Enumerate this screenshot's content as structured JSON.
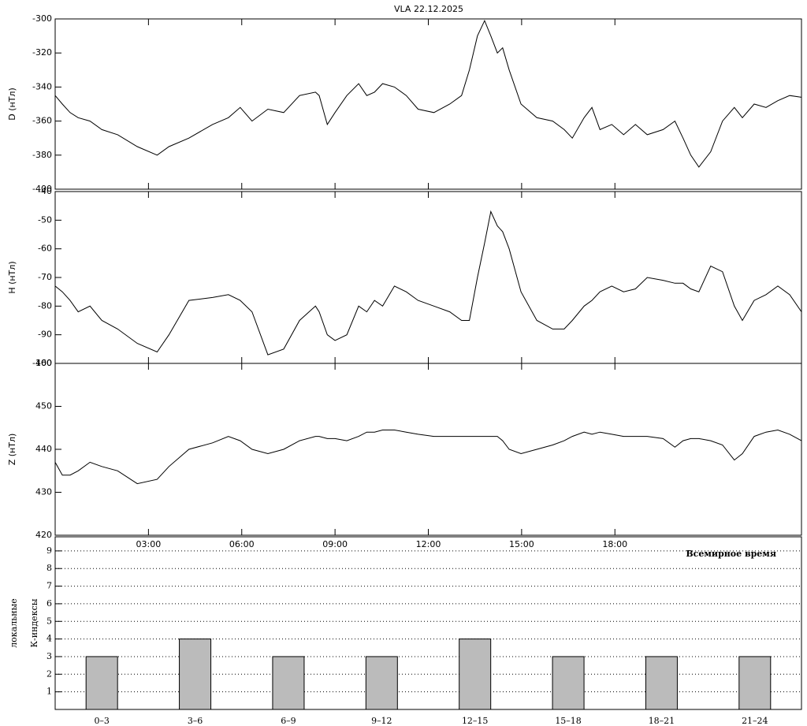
{
  "title": "VLA   22.12.2025",
  "chart_data": [
    {
      "type": "line",
      "ylabel": "D (нТл)",
      "x": [
        0,
        0.23,
        0.48,
        0.74,
        1.12,
        1.5,
        2.01,
        2.64,
        3.28,
        3.66,
        4.3,
        5.06,
        5.57,
        5.95,
        6.33,
        6.84,
        7.35,
        7.86,
        8.37,
        8.49,
        8.75,
        9.0,
        9.38,
        9.76,
        10.02,
        10.27,
        10.53,
        10.91,
        11.29,
        11.67,
        12.18,
        12.69,
        13.07,
        13.32,
        13.58,
        13.81,
        14.01,
        14.22,
        14.39,
        14.6,
        14.98,
        15.49,
        16.0,
        16.37,
        16.63,
        17.01,
        17.26,
        17.52,
        17.9,
        18.28,
        18.66,
        19.04,
        19.55,
        19.93,
        20.19,
        20.44,
        20.7,
        21.08,
        21.46,
        21.84,
        22.1,
        22.48,
        22.86,
        23.24,
        23.62,
        24
      ],
      "values": [
        -345,
        -350,
        -355,
        -358,
        -360,
        -365,
        -368,
        -375,
        -380,
        -375,
        -370,
        -362,
        -358,
        -352,
        -360,
        -353,
        -355,
        -345,
        -343,
        -345,
        -362,
        -355,
        -345,
        -338,
        -345,
        -343,
        -338,
        -340,
        -345,
        -353,
        -355,
        -350,
        -345,
        -330,
        -310,
        -301,
        -310,
        -320,
        -317,
        -330,
        -350,
        -358,
        -360,
        -365,
        -370,
        -358,
        -352,
        -365,
        -362,
        -368,
        -362,
        -368,
        -365,
        -360,
        -370,
        -380,
        -387,
        -378,
        -360,
        -352,
        -358,
        -350,
        -352,
        -348,
        -345,
        -346
      ],
      "color": "#000000",
      "xlim": [
        0,
        24
      ],
      "ylim": [
        -400,
        -300
      ],
      "yticks": [
        -300,
        -320,
        -340,
        -360,
        -380,
        -400
      ]
    },
    {
      "type": "line",
      "ylabel": "H (нТл)",
      "x": [
        0,
        0.23,
        0.48,
        0.74,
        1.12,
        1.5,
        2.01,
        2.64,
        3.28,
        3.66,
        4.3,
        5.06,
        5.57,
        5.95,
        6.33,
        6.84,
        7.35,
        7.86,
        8.37,
        8.49,
        8.75,
        9.0,
        9.38,
        9.76,
        10.02,
        10.27,
        10.53,
        10.91,
        11.29,
        11.67,
        12.18,
        12.69,
        13.07,
        13.32,
        13.58,
        13.81,
        14.01,
        14.22,
        14.39,
        14.6,
        14.98,
        15.49,
        16.0,
        16.37,
        16.63,
        17.01,
        17.26,
        17.52,
        17.9,
        18.28,
        18.66,
        19.04,
        19.55,
        19.93,
        20.19,
        20.44,
        20.7,
        21.08,
        21.46,
        21.84,
        22.1,
        22.48,
        22.86,
        23.24,
        23.62,
        24
      ],
      "values": [
        -73,
        -75,
        -78,
        -82,
        -80,
        -85,
        -88,
        -93,
        -96,
        -90,
        -78,
        -77,
        -76,
        -78,
        -82,
        -97,
        -95,
        -85,
        -80,
        -82,
        -90,
        -92,
        -90,
        -80,
        -82,
        -78,
        -80,
        -73,
        -75,
        -78,
        -80,
        -82,
        -85,
        -85,
        -70,
        -58,
        -47,
        -52,
        -54,
        -60,
        -75,
        -85,
        -88,
        -88,
        -85,
        -80,
        -78,
        -75,
        -73,
        -75,
        -74,
        -70,
        -71,
        -72,
        -72,
        -74,
        -75,
        -66,
        -68,
        -80,
        -85,
        -78,
        -76,
        -73,
        -76,
        -82
      ],
      "color": "#000000",
      "xlim": [
        0,
        24
      ],
      "ylim": [
        -100,
        -40
      ],
      "yticks": [
        -40,
        -50,
        -60,
        -70,
        -80,
        -90,
        -100
      ]
    },
    {
      "type": "line",
      "ylabel": "Z (нТл)",
      "x": [
        0,
        0.23,
        0.48,
        0.74,
        1.12,
        1.5,
        2.01,
        2.64,
        3.28,
        3.66,
        4.3,
        5.06,
        5.57,
        5.95,
        6.33,
        6.84,
        7.35,
        7.86,
        8.37,
        8.49,
        8.75,
        9.0,
        9.38,
        9.76,
        10.02,
        10.27,
        10.53,
        10.91,
        11.29,
        11.67,
        12.18,
        12.69,
        13.07,
        13.32,
        13.58,
        13.81,
        14.01,
        14.22,
        14.39,
        14.6,
        14.98,
        15.49,
        16.0,
        16.37,
        16.63,
        17.01,
        17.26,
        17.52,
        17.9,
        18.28,
        18.66,
        19.04,
        19.55,
        19.93,
        20.19,
        20.44,
        20.7,
        21.08,
        21.46,
        21.84,
        22.1,
        22.48,
        22.86,
        23.24,
        23.62,
        24
      ],
      "values": [
        437,
        434,
        434,
        435,
        437,
        436,
        435,
        432,
        433,
        436,
        440,
        441.5,
        443,
        442,
        440,
        439,
        440,
        442,
        443,
        443,
        442.5,
        442.5,
        442,
        443,
        444,
        444,
        444.5,
        444.5,
        444,
        443.5,
        443,
        443,
        443,
        443,
        443,
        443,
        443,
        443,
        442,
        440,
        439,
        440,
        441,
        442,
        443,
        444,
        443.5,
        444,
        443.5,
        443,
        443,
        443,
        442.5,
        440.5,
        442,
        442.5,
        442.5,
        442,
        441,
        437.5,
        439,
        443,
        444,
        444.5,
        443.5,
        442
      ],
      "color": "#000000",
      "xlim": [
        0,
        24
      ],
      "ylim": [
        420,
        460
      ],
      "yticks": [
        420,
        430,
        440,
        450,
        460
      ],
      "xticks": [
        {
          "value": 3,
          "label": "03:00"
        },
        {
          "value": 6,
          "label": "06:00"
        },
        {
          "value": 9,
          "label": "09:00"
        },
        {
          "value": 12,
          "label": "12:00"
        },
        {
          "value": 15,
          "label": "15:00"
        },
        {
          "value": 18,
          "label": "18:00"
        }
      ]
    },
    {
      "type": "bar",
      "ylabel": [
        "локальные",
        "К-индексы"
      ],
      "annotation": "Всемирное время",
      "categories": [
        "0–3",
        "3–6",
        "6–9",
        "9–12",
        "12–15",
        "15–18",
        "18–21",
        "21–24"
      ],
      "values": [
        3,
        4,
        3,
        3,
        4,
        3,
        3,
        3
      ],
      "color": "#bbbbbb",
      "ylim": [
        0,
        9.8
      ],
      "yticks": [
        1,
        2,
        3,
        4,
        5,
        6,
        7,
        8,
        9
      ],
      "grid": true
    }
  ]
}
